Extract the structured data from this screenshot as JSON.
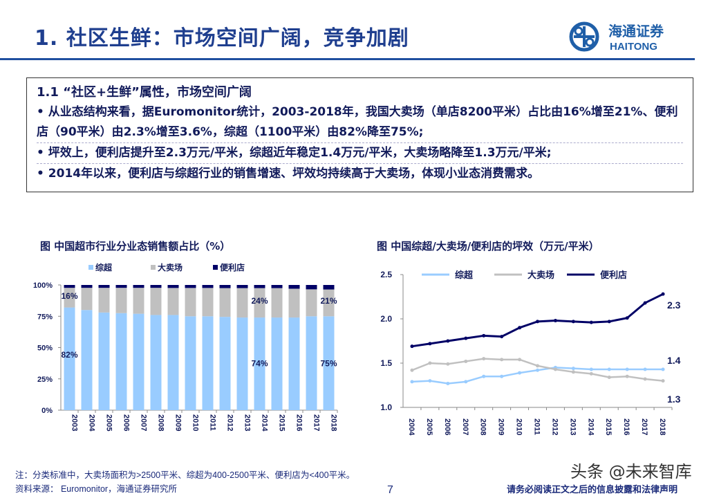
{
  "title": "1. 社区生鲜：市场空间广阔，竞争加剧",
  "logo": {
    "cn": "海通证券",
    "en": "HAITONG"
  },
  "box": {
    "heading": "1.1 “社区+生鲜”属性，市场空间广阔",
    "bullets": [
      "•  从业态结构来看，据Euromonitor统计，2003-2018年，我国大卖场（单店8200平米）占比由16%增至21%、便利店（90平米）由2.3%增至3.6%，综超（1100平米）由82%降至75%;",
      "•  坪效上，便利店提升至2.3万元/平米，综超近年稳定1.4万元/平米，大卖场略降至1.3万元/平米;",
      "•  2014年以来，便利店与综超行业的销售增速、坪效均持续高于大卖场，体现小业态消费需求。"
    ]
  },
  "chart_data": [
    {
      "type": "bar",
      "stacked": true,
      "title": "图  中国超市行业分业态销售额占比（%）",
      "categories": [
        "2003",
        "2004",
        "2005",
        "2006",
        "2007",
        "2008",
        "2009",
        "2010",
        "2011",
        "2012",
        "2013",
        "2014",
        "2015",
        "2016",
        "2017",
        "2018"
      ],
      "series": [
        {
          "name": "综超",
          "color": "#99ccff",
          "values": [
            82,
            80,
            78,
            77.5,
            77,
            76,
            76,
            75,
            75,
            74.5,
            74,
            74,
            74,
            74,
            75,
            75
          ]
        },
        {
          "name": "大卖场",
          "color": "#c0c0c0",
          "values": [
            15.7,
            17.7,
            19.7,
            20.2,
            20.7,
            21.7,
            21.6,
            22.6,
            22.6,
            23,
            23.5,
            23.5,
            23.5,
            23,
            21.5,
            21.4
          ]
        },
        {
          "name": "便利店",
          "color": "#000066",
          "values": [
            2.3,
            2.3,
            2.3,
            2.3,
            2.3,
            2.3,
            2.4,
            2.4,
            2.4,
            2.5,
            2.5,
            2.5,
            2.5,
            3,
            3.5,
            3.6
          ]
        }
      ],
      "yticks": [
        "0%",
        "25%",
        "50%",
        "75%",
        "100%"
      ],
      "ylim": [
        0,
        100
      ],
      "legend": "top",
      "annotations": [
        {
          "text": "16%",
          "cat": "2003",
          "y": 89
        },
        {
          "text": "82%",
          "cat": "2003",
          "y": 42
        },
        {
          "text": "24%",
          "cat": "2014",
          "y": 85
        },
        {
          "text": "74%",
          "cat": "2014",
          "y": 35
        },
        {
          "text": "21%",
          "cat": "2018",
          "y": 85
        },
        {
          "text": "75%",
          "cat": "2018",
          "y": 35
        }
      ]
    },
    {
      "type": "line",
      "title": "图  中国综超/大卖场/便利店的坪效（万元/平米）",
      "categories": [
        "2004",
        "2005",
        "2006",
        "2007",
        "2008",
        "2009",
        "2010",
        "2011",
        "2012",
        "2013",
        "2014",
        "2015",
        "2016",
        "2017",
        "2018"
      ],
      "series": [
        {
          "name": "综超",
          "color": "#99ccff",
          "values": [
            1.29,
            1.3,
            1.27,
            1.29,
            1.35,
            1.35,
            1.39,
            1.42,
            1.45,
            1.44,
            1.43,
            1.43,
            1.43,
            1.43,
            1.43
          ]
        },
        {
          "name": "大卖场",
          "color": "#c0c0c0",
          "values": [
            1.42,
            1.5,
            1.49,
            1.52,
            1.55,
            1.54,
            1.54,
            1.47,
            1.43,
            1.4,
            1.38,
            1.34,
            1.35,
            1.32,
            1.3
          ]
        },
        {
          "name": "便利店",
          "color": "#000066",
          "values": [
            1.69,
            1.72,
            1.75,
            1.78,
            1.81,
            1.8,
            1.9,
            1.97,
            1.98,
            1.97,
            1.96,
            1.97,
            2.01,
            2.18,
            2.28
          ]
        }
      ],
      "yticks": [
        "1.0",
        "1.5",
        "2.0",
        "2.5"
      ],
      "ylim": [
        1.0,
        2.5
      ],
      "legend": "top",
      "end_labels": [
        "1.4",
        "1.3",
        "2.3"
      ]
    }
  ],
  "footer": {
    "note": "注：分类标准中，大卖场面积为>2500平米、综超为400-2500平米、便利店为<400平米。",
    "source": "资料来源： Euromonitor，海通证券研究所",
    "page": "7",
    "watermark": "头条 @未来智库",
    "disclaimer": "请务必阅读正文之后的信息披露和法律声明"
  }
}
